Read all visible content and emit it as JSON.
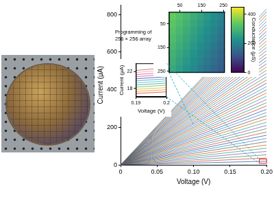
{
  "chart_data": [
    {
      "type": "line",
      "x_label": "Voltage (V)",
      "y_label": "Current (μA)",
      "x": [
        0,
        0.2
      ],
      "series": [
        {
          "color": "#1f4e9c",
          "values": [
            0,
            20
          ]
        },
        {
          "color": "#c0392b",
          "values": [
            0,
            37
          ]
        },
        {
          "color": "#2e8b57",
          "values": [
            0,
            54
          ]
        },
        {
          "color": "#8e44ad",
          "values": [
            0,
            72
          ]
        },
        {
          "color": "#16a085",
          "values": [
            0,
            89
          ]
        },
        {
          "color": "#d35400",
          "values": [
            0,
            106
          ]
        },
        {
          "color": "#555555",
          "values": [
            0,
            124
          ]
        },
        {
          "color": "#2980b9",
          "values": [
            0,
            141
          ]
        },
        {
          "color": "#1f4e9c",
          "values": [
            0,
            158
          ]
        },
        {
          "color": "#c0392b",
          "values": [
            0,
            175
          ]
        },
        {
          "color": "#2e8b57",
          "values": [
            0,
            193
          ]
        },
        {
          "color": "#8e44ad",
          "values": [
            0,
            210
          ]
        },
        {
          "color": "#16a085",
          "values": [
            0,
            227
          ]
        },
        {
          "color": "#d35400",
          "values": [
            0,
            245
          ]
        },
        {
          "color": "#555555",
          "values": [
            0,
            262
          ]
        },
        {
          "color": "#2980b9",
          "values": [
            0,
            279
          ]
        },
        {
          "color": "#1f4e9c",
          "values": [
            0,
            296
          ]
        },
        {
          "color": "#c0392b",
          "values": [
            0,
            314
          ]
        },
        {
          "color": "#2e8b57",
          "values": [
            0,
            331
          ]
        },
        {
          "color": "#8e44ad",
          "values": [
            0,
            348
          ]
        },
        {
          "color": "#16a085",
          "values": [
            0,
            366
          ]
        },
        {
          "color": "#d35400",
          "values": [
            0,
            383
          ]
        },
        {
          "color": "#555555",
          "values": [
            0,
            400
          ]
        },
        {
          "color": "#2980b9",
          "values": [
            0,
            417
          ]
        },
        {
          "color": "#1f4e9c",
          "values": [
            0,
            435
          ]
        },
        {
          "color": "#c0392b",
          "values": [
            0,
            452
          ]
        },
        {
          "color": "#2e8b57",
          "values": [
            0,
            469
          ]
        },
        {
          "color": "#8e44ad",
          "values": [
            0,
            487
          ]
        },
        {
          "color": "#16a085",
          "values": [
            0,
            504
          ]
        },
        {
          "color": "#d35400",
          "values": [
            0,
            521
          ]
        },
        {
          "color": "#555555",
          "values": [
            0,
            538
          ]
        },
        {
          "color": "#2980b9",
          "values": [
            0,
            556
          ]
        },
        {
          "color": "#1f4e9c",
          "values": [
            0,
            573
          ]
        },
        {
          "color": "#c0392b",
          "values": [
            0,
            590
          ]
        },
        {
          "color": "#2e8b57",
          "values": [
            0,
            608
          ]
        },
        {
          "color": "#8e44ad",
          "values": [
            0,
            625
          ]
        },
        {
          "color": "#16a085",
          "values": [
            0,
            642
          ]
        },
        {
          "color": "#d35400",
          "values": [
            0,
            659
          ]
        },
        {
          "color": "#555555",
          "values": [
            0,
            677
          ]
        },
        {
          "color": "#2980b9",
          "values": [
            0,
            694
          ]
        },
        {
          "color": "#1f4e9c",
          "values": [
            0,
            711
          ]
        },
        {
          "color": "#c0392b",
          "values": [
            0,
            729
          ]
        },
        {
          "color": "#2e8b57",
          "values": [
            0,
            746
          ]
        },
        {
          "color": "#8e44ad",
          "values": [
            0,
            763
          ]
        },
        {
          "color": "#16a085",
          "values": [
            0,
            780
          ]
        },
        {
          "color": "#d35400",
          "values": [
            0,
            798
          ]
        },
        {
          "color": "#555555",
          "values": [
            0,
            815
          ]
        },
        {
          "color": "#2980b9",
          "values": [
            0,
            830
          ]
        }
      ],
      "xlim": [
        0,
        0.2
      ],
      "ylim": [
        0,
        850
      ],
      "xticks": [
        0,
        0.05,
        {
          "value": 0.1,
          "label": "0.10"
        },
        0.15,
        {
          "value": 0.2,
          "label": "0.20"
        }
      ],
      "yticks": [
        0,
        200,
        400,
        600,
        800
      ],
      "grid": false
    },
    {
      "type": "heatmap",
      "title": "Programming of 256 × 256 array",
      "cells": [
        [
          340,
          320,
          300,
          280,
          260,
          240,
          220,
          200
        ],
        [
          330,
          310,
          290,
          270,
          250,
          230,
          210,
          190
        ],
        [
          320,
          300,
          280,
          260,
          240,
          220,
          200,
          180
        ],
        [
          310,
          290,
          270,
          250,
          230,
          210,
          190,
          170
        ],
        [
          300,
          280,
          260,
          240,
          220,
          200,
          180,
          160
        ],
        [
          290,
          270,
          250,
          230,
          210,
          190,
          170,
          150
        ],
        [
          280,
          260,
          240,
          220,
          200,
          180,
          160,
          140
        ],
        [
          270,
          250,
          230,
          210,
          190,
          170,
          150,
          130
        ]
      ],
      "xlim": [
        0,
        256
      ],
      "ylim": [
        256,
        0
      ],
      "xticks": [
        50,
        150,
        250
      ],
      "yticks": [
        50,
        150,
        250
      ],
      "colorbar": {
        "label": "Conductance (μS)",
        "range": [
          0,
          450
        ],
        "ticks": [
          0,
          200,
          400
        ]
      }
    },
    {
      "type": "line",
      "x_label": "Voltage (V)",
      "y_label": "Current (μA)",
      "x": [
        0.19,
        0.2
      ],
      "series": [
        {
          "color": "#e41a1c",
          "values": [
            16.8,
            17.2
          ]
        },
        {
          "color": "#ff7f00",
          "values": [
            17.3,
            17.7
          ]
        },
        {
          "color": "#d4b000",
          "values": [
            17.8,
            18.2
          ]
        },
        {
          "color": "#4daf4a",
          "values": [
            18.3,
            18.8
          ]
        },
        {
          "color": "#1b9e77",
          "values": [
            18.8,
            19.3
          ]
        },
        {
          "color": "#17becf",
          "values": [
            19.3,
            19.8
          ]
        },
        {
          "color": "#377eb8",
          "values": [
            19.8,
            20.3
          ]
        },
        {
          "color": "#1f2f8f",
          "values": [
            20.3,
            20.8
          ]
        },
        {
          "color": "#984ea3",
          "values": [
            20.8,
            21.3
          ]
        },
        {
          "color": "#e7298a",
          "values": [
            21.3,
            21.8
          ]
        },
        {
          "color": "#f781bf",
          "values": [
            21.8,
            22.4
          ]
        },
        {
          "color": "#a65628",
          "values": [
            22.3,
            22.9
          ]
        }
      ],
      "xlim": [
        0.19,
        0.2
      ],
      "ylim": [
        16,
        24
      ],
      "xticks": [
        0.19,
        0.2
      ],
      "yticks": [
        18,
        22
      ],
      "grid": false
    }
  ]
}
